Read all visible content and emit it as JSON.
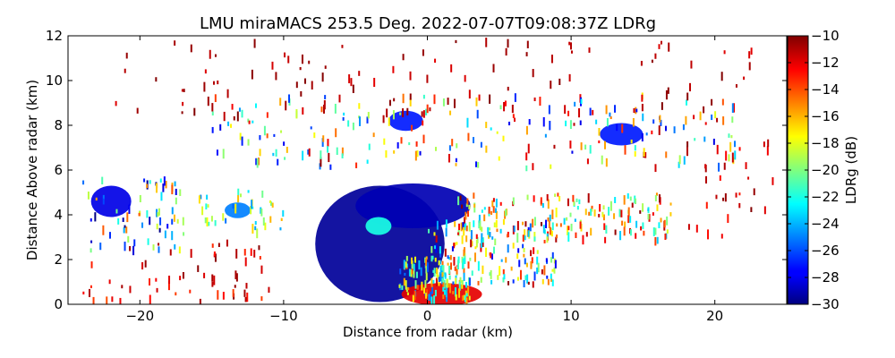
{
  "chart_data": {
    "type": "heatmap",
    "title": "LMU miraMACS 253.5 Deg. 2022-07-07T09:08:37Z  LDRg",
    "xlabel": "Distance from radar (km)",
    "ylabel": "Distance Above radar  (km)",
    "xlim": [
      -25,
      25
    ],
    "ylim": [
      0,
      12
    ],
    "x_ticks": [
      -20,
      -10,
      0,
      10,
      20
    ],
    "x_tick_labels": [
      "−20",
      "−10",
      "0",
      "10",
      "20"
    ],
    "y_ticks": [
      0,
      2,
      4,
      6,
      8,
      10,
      12
    ],
    "y_tick_labels": [
      "0",
      "2",
      "4",
      "6",
      "8",
      "10",
      "12"
    ],
    "colorbar": {
      "label": "LDRg (dB)",
      "range": [
        -30,
        -10
      ],
      "ticks": [
        -10,
        -12,
        -14,
        -16,
        -18,
        -20,
        -22,
        -24,
        -26,
        -28,
        -30
      ],
      "tick_labels": [
        "−10",
        "−12",
        "−14",
        "−16",
        "−18",
        "−20",
        "−22",
        "−24",
        "−26",
        "−28",
        "−30"
      ],
      "colormap": "jet"
    },
    "regions": [
      {
        "kind": "blob",
        "cx": -3.3,
        "cy": 2.7,
        "rx": 4.5,
        "ry": 2.6,
        "value": -29.5
      },
      {
        "kind": "blob",
        "cx": -1.0,
        "cy": 4.4,
        "rx": 4.0,
        "ry": 1.0,
        "value": -29
      },
      {
        "kind": "blob",
        "cx": 1.0,
        "cy": 0.45,
        "rx": 2.8,
        "ry": 0.5,
        "value": -12
      },
      {
        "kind": "blob",
        "cx": -3.4,
        "cy": 3.5,
        "rx": 0.9,
        "ry": 0.4,
        "value": -22
      },
      {
        "kind": "blob",
        "cx": -22.0,
        "cy": 4.6,
        "rx": 1.4,
        "ry": 0.7,
        "value": -28
      },
      {
        "kind": "blob",
        "cx": -13.2,
        "cy": 4.2,
        "rx": 0.9,
        "ry": 0.35,
        "value": -25
      },
      {
        "kind": "blob",
        "cx": -1.5,
        "cy": 8.2,
        "rx": 1.2,
        "ry": 0.45,
        "value": -27
      },
      {
        "kind": "blob",
        "cx": 13.5,
        "cy": 7.6,
        "rx": 1.5,
        "ry": 0.5,
        "value": -27
      },
      {
        "kind": "scatter",
        "x0": -24,
        "x1": -17,
        "y0": 2.5,
        "y1": 5.8,
        "n": 70,
        "vmin": -30,
        "vmax": -14
      },
      {
        "kind": "scatter",
        "x0": -24,
        "x1": -11,
        "y0": 0.2,
        "y1": 3.0,
        "n": 60,
        "vmin": -14,
        "vmax": -10
      },
      {
        "kind": "scatter",
        "x0": -16,
        "x1": -10,
        "y0": 3.3,
        "y1": 5.2,
        "n": 40,
        "vmin": -26,
        "vmax": -16
      },
      {
        "kind": "scatter",
        "x0": -15,
        "x1": 22,
        "y0": 6.2,
        "y1": 9.5,
        "n": 230,
        "vmin": -28,
        "vmax": -10
      },
      {
        "kind": "scatter",
        "x0": -22,
        "x1": 23,
        "y0": 8.5,
        "y1": 12.0,
        "n": 110,
        "vmin": -12,
        "vmax": -10
      },
      {
        "kind": "scatter",
        "x0": 2,
        "x1": 17,
        "y0": 3.0,
        "y1": 5.0,
        "n": 170,
        "vmin": -24,
        "vmax": -10
      },
      {
        "kind": "scatter",
        "x0": 0,
        "x1": 9,
        "y0": 1.0,
        "y1": 3.8,
        "n": 160,
        "vmin": -28,
        "vmax": -10
      },
      {
        "kind": "scatter",
        "x0": -2,
        "x1": 3,
        "y0": 0.3,
        "y1": 2.2,
        "n": 120,
        "vmin": -26,
        "vmax": -14
      },
      {
        "kind": "scatter",
        "x0": 18,
        "x1": 24,
        "y0": 3.0,
        "y1": 8.5,
        "n": 30,
        "vmin": -13,
        "vmax": -10
      }
    ]
  }
}
